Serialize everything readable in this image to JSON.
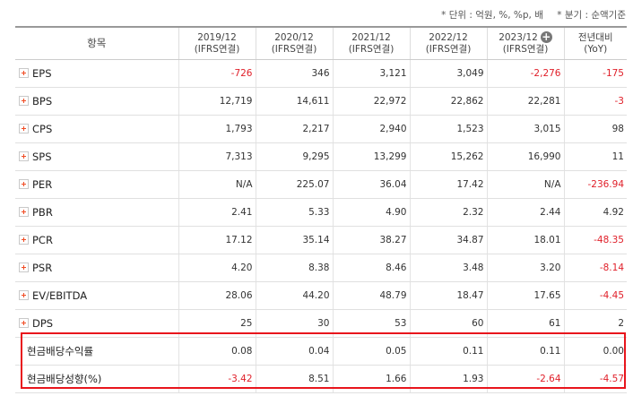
{
  "notes": {
    "unit": "* 단위 : 억원, %, %p, 배",
    "basis": "* 분기 : 순액기준"
  },
  "table": {
    "header_label": "항목",
    "columns": [
      {
        "period": "2019/12",
        "basis": "(IFRS연결)"
      },
      {
        "period": "2020/12",
        "basis": "(IFRS연결)"
      },
      {
        "period": "2021/12",
        "basis": "(IFRS연결)"
      },
      {
        "period": "2022/12",
        "basis": "(IFRS연결)"
      },
      {
        "period": "2023/12",
        "basis": "(IFRS연결)",
        "expand_icon": "plus-circle-icon"
      }
    ],
    "yoy_header": {
      "line1": "전년대비",
      "line2": "(YoY)"
    },
    "rows": [
      {
        "label": "EPS",
        "expandable": true,
        "values": [
          "-726",
          "346",
          "3,121",
          "3,049",
          "-2,276"
        ],
        "yoy": "-175"
      },
      {
        "label": "BPS",
        "expandable": true,
        "values": [
          "12,719",
          "14,611",
          "22,972",
          "22,862",
          "22,281"
        ],
        "yoy": "-3"
      },
      {
        "label": "CPS",
        "expandable": true,
        "values": [
          "1,793",
          "2,217",
          "2,940",
          "1,523",
          "3,015"
        ],
        "yoy": "98"
      },
      {
        "label": "SPS",
        "expandable": true,
        "values": [
          "7,313",
          "9,295",
          "13,299",
          "15,262",
          "16,990"
        ],
        "yoy": "11"
      },
      {
        "label": "PER",
        "expandable": true,
        "values": [
          "N/A",
          "225.07",
          "36.04",
          "17.42",
          "N/A"
        ],
        "yoy": "-236.94"
      },
      {
        "label": "PBR",
        "expandable": true,
        "values": [
          "2.41",
          "5.33",
          "4.90",
          "2.32",
          "2.44"
        ],
        "yoy": "4.92"
      },
      {
        "label": "PCR",
        "expandable": true,
        "values": [
          "17.12",
          "35.14",
          "38.27",
          "34.87",
          "18.01"
        ],
        "yoy": "-48.35"
      },
      {
        "label": "PSR",
        "expandable": true,
        "values": [
          "4.20",
          "8.38",
          "8.46",
          "3.48",
          "3.20"
        ],
        "yoy": "-8.14"
      },
      {
        "label": "EV/EBITDA",
        "expandable": true,
        "values": [
          "28.06",
          "44.20",
          "48.79",
          "18.47",
          "17.65"
        ],
        "yoy": "-4.45"
      },
      {
        "label": "DPS",
        "expandable": true,
        "values": [
          "25",
          "30",
          "53",
          "60",
          "61"
        ],
        "yoy": "2"
      },
      {
        "label": "현금배당수익률",
        "expandable": false,
        "values": [
          "0.08",
          "0.04",
          "0.05",
          "0.11",
          "0.11"
        ],
        "yoy": "0.00"
      },
      {
        "label": "현금배당성향(%)",
        "expandable": false,
        "values": [
          "-3.42",
          "8.51",
          "1.66",
          "1.93",
          "-2.64"
        ],
        "yoy": "-4.57"
      }
    ]
  },
  "colors": {
    "negative": "#e0202a",
    "highlight_border": "#e8151c",
    "expand_plus": "#f04b23"
  }
}
